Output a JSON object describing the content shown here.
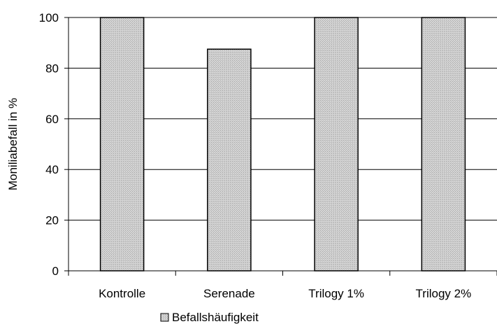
{
  "chart_data": {
    "type": "bar",
    "categories": [
      "Kontrolle",
      "Serenade",
      "Trilogy 1%",
      "Trilogy 2%"
    ],
    "series": [
      {
        "name": "Befallshäufigkeit",
        "values": [
          100,
          87.5,
          100,
          100
        ]
      }
    ],
    "title": "",
    "xlabel": "",
    "ylabel": "Moniliabefall in %",
    "ylim": [
      0,
      100
    ],
    "yticks": [
      0,
      20,
      40,
      60,
      80,
      100
    ],
    "grid": true,
    "legend_position": "bottom",
    "colors": {
      "bar_fill": "#c8c8c8",
      "bar_stroke": "#000000",
      "gridline": "#000000",
      "axis": "#000000"
    }
  }
}
